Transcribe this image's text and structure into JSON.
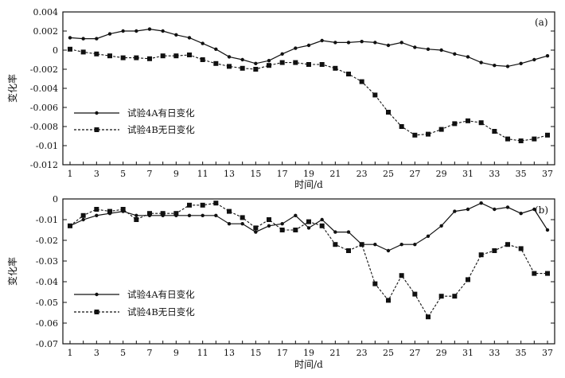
{
  "chart_data": [
    {
      "type": "line",
      "panel_label": "(a)",
      "xlabel": "时间/d",
      "ylabel": "变化率",
      "x": [
        1,
        2,
        3,
        4,
        5,
        6,
        7,
        8,
        9,
        10,
        11,
        12,
        13,
        14,
        15,
        16,
        17,
        18,
        19,
        20,
        21,
        22,
        23,
        24,
        25,
        26,
        27,
        28,
        29,
        30,
        31,
        32,
        33,
        34,
        35,
        36,
        37
      ],
      "x_tick_labels": [
        "1",
        "3",
        "5",
        "7",
        "9",
        "11",
        "13",
        "15",
        "17",
        "19",
        "21",
        "23",
        "25",
        "27",
        "29",
        "31",
        "33",
        "35",
        "37"
      ],
      "ylim": [
        -0.012,
        0.004
      ],
      "y_ticks": [
        0.004,
        0.002,
        0,
        -0.002,
        -0.004,
        -0.006,
        -0.008,
        -0.01,
        -0.012
      ],
      "y_tick_labels": [
        "0.004",
        "0.002",
        "0",
        "-0.002",
        "-0.004",
        "-0.006",
        "-0.008",
        "-0.01",
        "-0.012"
      ],
      "grid": false,
      "legend_position": "left-bottom",
      "series": [
        {
          "name": "试验4A有日变化",
          "marker": "dot",
          "line": "solid",
          "values": [
            0.0013,
            0.0012,
            0.0012,
            0.0017,
            0.002,
            0.002,
            0.0022,
            0.002,
            0.0016,
            0.0013,
            0.0007,
            0.0001,
            -0.0007,
            -0.001,
            -0.0014,
            -0.0011,
            -0.0004,
            0.0002,
            0.0005,
            0.001,
            0.0008,
            0.0008,
            0.0009,
            0.0008,
            0.0005,
            0.0008,
            0.0003,
            0.0001,
            0.0,
            -0.0004,
            -0.0007,
            -0.0013,
            -0.0016,
            -0.0017,
            -0.0014,
            -0.001,
            -0.0006
          ]
        },
        {
          "name": "试验4B无日变化",
          "marker": "square",
          "line": "dashed",
          "values": [
            0.0001,
            -0.0002,
            -0.0004,
            -0.0006,
            -0.0008,
            -0.0008,
            -0.0009,
            -0.0006,
            -0.0006,
            -0.0005,
            -0.001,
            -0.0014,
            -0.0017,
            -0.0019,
            -0.002,
            -0.0016,
            -0.0013,
            -0.0013,
            -0.0015,
            -0.0015,
            -0.0019,
            -0.0025,
            -0.0033,
            -0.0047,
            -0.0065,
            -0.008,
            -0.0089,
            -0.0088,
            -0.0083,
            -0.0077,
            -0.0074,
            -0.0076,
            -0.0085,
            -0.0093,
            -0.0095,
            -0.0093,
            -0.0089
          ]
        }
      ]
    },
    {
      "type": "line",
      "panel_label": "(b)",
      "xlabel": "时间/d",
      "ylabel": "变化率",
      "x": [
        1,
        2,
        3,
        4,
        5,
        6,
        7,
        8,
        9,
        10,
        11,
        12,
        13,
        14,
        15,
        16,
        17,
        18,
        19,
        20,
        21,
        22,
        23,
        24,
        25,
        26,
        27,
        28,
        29,
        30,
        31,
        32,
        33,
        34,
        35,
        36,
        37
      ],
      "x_tick_labels": [
        "1",
        "3",
        "5",
        "7",
        "9",
        "11",
        "13",
        "15",
        "17",
        "19",
        "21",
        "23",
        "25",
        "27",
        "29",
        "31",
        "33",
        "35",
        "37"
      ],
      "ylim": [
        -0.07,
        0
      ],
      "y_ticks": [
        0,
        -0.01,
        -0.02,
        -0.03,
        -0.04,
        -0.05,
        -0.06,
        -0.07
      ],
      "y_tick_labels": [
        "0",
        "-0.01",
        "-0.02",
        "-0.03",
        "-0.04",
        "-0.05",
        "-0.06",
        "-0.07"
      ],
      "grid": false,
      "legend_position": "left-bottom",
      "series": [
        {
          "name": "试验4A有日变化",
          "marker": "dot",
          "line": "solid",
          "values": [
            -0.013,
            -0.01,
            -0.008,
            -0.007,
            -0.006,
            -0.008,
            -0.008,
            -0.008,
            -0.008,
            -0.008,
            -0.008,
            -0.008,
            -0.012,
            -0.012,
            -0.016,
            -0.013,
            -0.012,
            -0.008,
            -0.014,
            -0.01,
            -0.016,
            -0.016,
            -0.022,
            -0.022,
            -0.025,
            -0.022,
            -0.022,
            -0.018,
            -0.013,
            -0.006,
            -0.005,
            -0.002,
            -0.005,
            -0.004,
            -0.007,
            -0.005,
            -0.015
          ]
        },
        {
          "name": "试验4B无日变化",
          "marker": "square",
          "line": "dashed",
          "values": [
            -0.013,
            -0.008,
            -0.005,
            -0.006,
            -0.005,
            -0.01,
            -0.007,
            -0.007,
            -0.007,
            -0.003,
            -0.003,
            -0.002,
            -0.006,
            -0.009,
            -0.014,
            -0.01,
            -0.015,
            -0.015,
            -0.011,
            -0.013,
            -0.022,
            -0.025,
            -0.022,
            -0.041,
            -0.049,
            -0.037,
            -0.046,
            -0.057,
            -0.047,
            -0.047,
            -0.039,
            -0.027,
            -0.025,
            -0.022,
            -0.024,
            -0.036,
            -0.036
          ]
        }
      ]
    }
  ]
}
